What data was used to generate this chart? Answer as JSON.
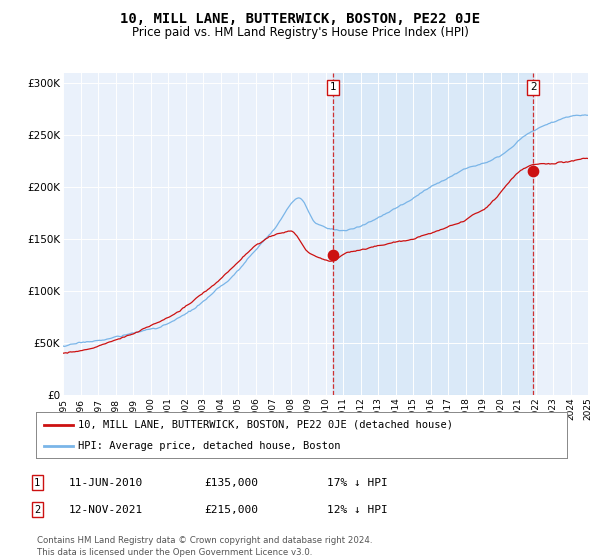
{
  "title": "10, MILL LANE, BUTTERWICK, BOSTON, PE22 0JE",
  "subtitle": "Price paid vs. HM Land Registry's House Price Index (HPI)",
  "title_fontsize": 10,
  "subtitle_fontsize": 8.5,
  "xmin": 1995,
  "xmax": 2025,
  "ymin": 0,
  "ymax": 310000,
  "yticks": [
    0,
    50000,
    100000,
    150000,
    200000,
    250000,
    300000
  ],
  "ytick_labels": [
    "£0",
    "£50K",
    "£100K",
    "£150K",
    "£200K",
    "£250K",
    "£300K"
  ],
  "xticks": [
    1995,
    1996,
    1997,
    1998,
    1999,
    2000,
    2001,
    2002,
    2003,
    2004,
    2005,
    2006,
    2007,
    2008,
    2009,
    2010,
    2011,
    2012,
    2013,
    2014,
    2015,
    2016,
    2017,
    2018,
    2019,
    2020,
    2021,
    2022,
    2023,
    2024,
    2025
  ],
  "hpi_color": "#7ab5e8",
  "price_color": "#cc1111",
  "sale1_x": 2010.44,
  "sale1_y": 135000,
  "sale1_label": "1",
  "sale1_date": "11-JUN-2010",
  "sale1_price": "£135,000",
  "sale1_pct": "17% ↓ HPI",
  "sale2_x": 2021.87,
  "sale2_y": 215000,
  "sale2_label": "2",
  "sale2_date": "12-NOV-2021",
  "sale2_price": "£215,000",
  "sale2_pct": "12% ↓ HPI",
  "legend_property": "10, MILL LANE, BUTTERWICK, BOSTON, PE22 0JE (detached house)",
  "legend_hpi": "HPI: Average price, detached house, Boston",
  "footer1": "Contains HM Land Registry data © Crown copyright and database right 2024.",
  "footer2": "This data is licensed under the Open Government Licence v3.0.",
  "background_plot": "#eaf1fb",
  "background_fig": "#ffffff",
  "shade_color": "#d0e4f7",
  "grid_color": "#ffffff"
}
